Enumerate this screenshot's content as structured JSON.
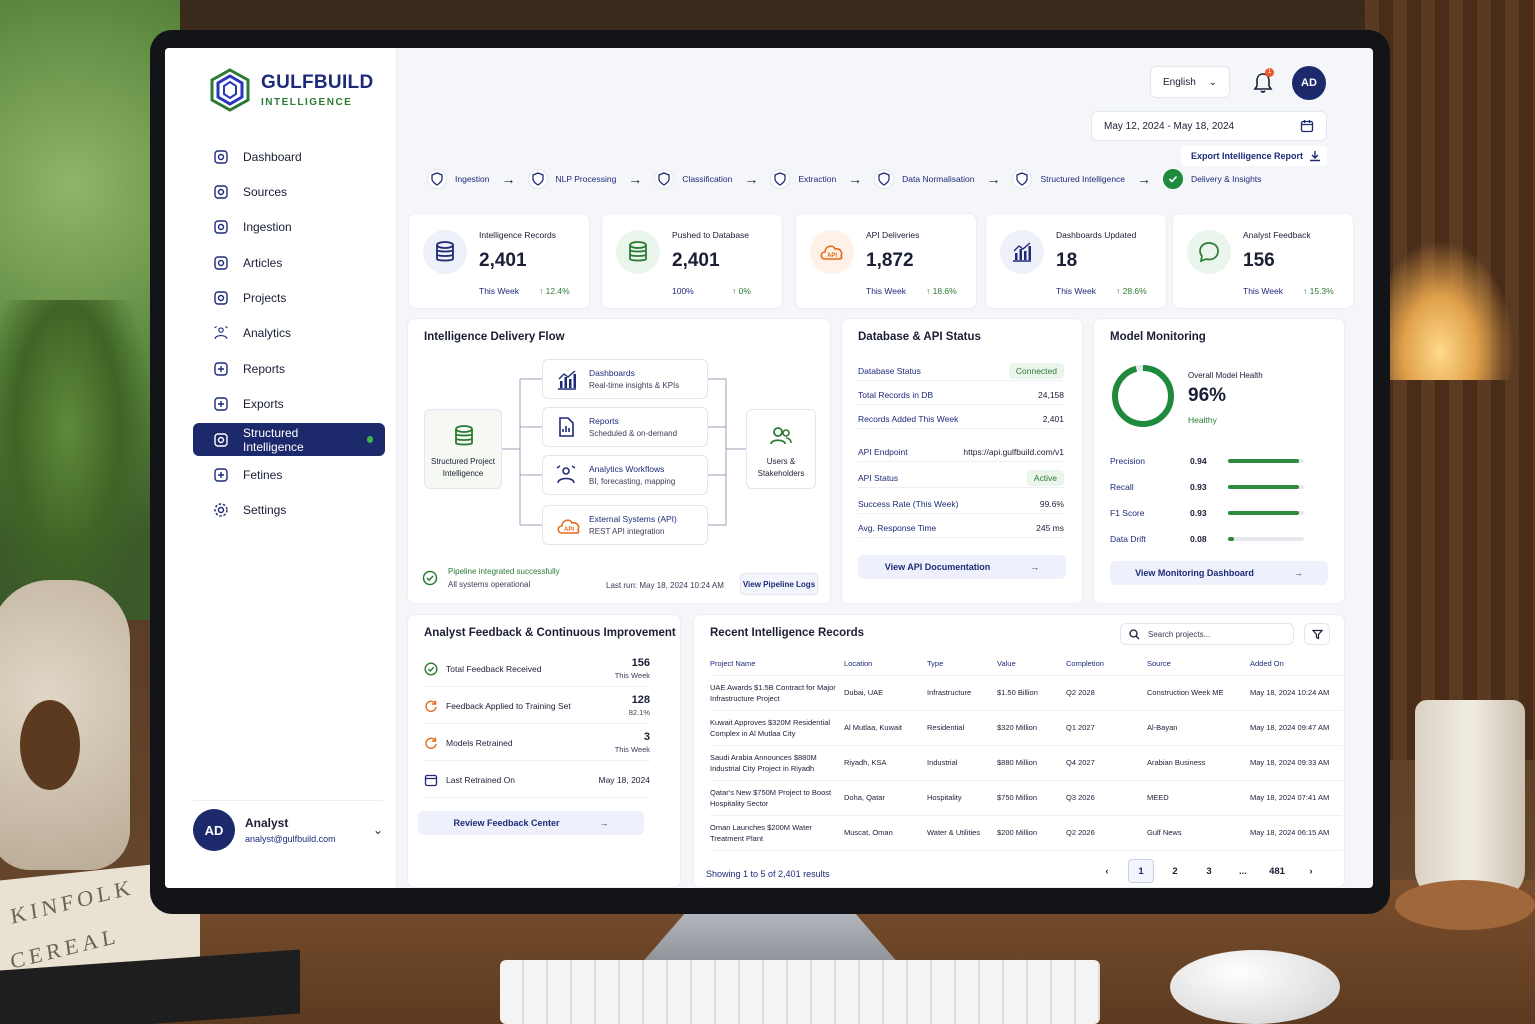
{
  "brand": {
    "name": "GULFBUILD",
    "sub": "INTELLIGENCE"
  },
  "sidebar": {
    "items": [
      {
        "label": "Dashboard",
        "icon": "dashboard-icon"
      },
      {
        "label": "Sources",
        "icon": "sources-icon"
      },
      {
        "label": "Ingestion",
        "icon": "ingestion-icon"
      },
      {
        "label": "Articles",
        "icon": "articles-icon"
      },
      {
        "label": "Projects",
        "icon": "projects-icon"
      },
      {
        "label": "Analytics",
        "icon": "analytics-icon"
      },
      {
        "label": "Reports",
        "icon": "reports-icon"
      },
      {
        "label": "Exports",
        "icon": "exports-icon"
      },
      {
        "label": "Structured Intelligence",
        "icon": "structured-intelligence-icon",
        "active": true
      },
      {
        "label": "Fetines",
        "icon": "fetines-icon"
      },
      {
        "label": "Settings",
        "icon": "settings-icon"
      }
    ],
    "user": {
      "initials": "AD",
      "name": "Analyst",
      "email": "analyst@gulfbuild.com"
    }
  },
  "header": {
    "language": "English",
    "notification_count": "1",
    "avatar_initials": "AD",
    "date_range": "May 12, 2024 - May 18, 2024",
    "export_label": "Export Intelligence Report"
  },
  "pipeline": [
    {
      "label": "Ingestion",
      "done": false
    },
    {
      "label": "NLP Processing",
      "done": false
    },
    {
      "label": "Classification",
      "done": false
    },
    {
      "label": "Extraction",
      "done": false
    },
    {
      "label": "Data Normalisation",
      "done": false
    },
    {
      "label": "Structured Intelligence",
      "done": false
    },
    {
      "label": "Delivery & Insights",
      "done": true
    }
  ],
  "kpis": [
    {
      "label": "Intelligence Records",
      "value": "2,401",
      "period": "This Week",
      "trend": "↑ 12.4%",
      "icon": "database-icon",
      "tone": "blue"
    },
    {
      "label": "Pushed to Database",
      "value": "2,401",
      "period": "100%",
      "trend": "↑ 0%",
      "icon": "database-icon",
      "tone": "green"
    },
    {
      "label": "API Deliveries",
      "value": "1,872",
      "period": "This Week",
      "trend": "↑ 18.6%",
      "icon": "api-cloud-icon",
      "tone": "orange"
    },
    {
      "label": "Dashboards Updated",
      "value": "18",
      "period": "This Week",
      "trend": "↑ 28.6%",
      "icon": "bar-chart-icon",
      "tone": "blue"
    },
    {
      "label": "Analyst Feedback",
      "value": "156",
      "period": "This Week",
      "trend": "↑ 15.3%",
      "icon": "chat-icon",
      "tone": "green"
    }
  ],
  "flow": {
    "title": "Intelligence Delivery Flow",
    "source_label": "Structured Project Intelligence",
    "target_label": "Users & Stakeholders",
    "items": [
      {
        "title": "Dashboards",
        "sub": "Real-time insights & KPIs",
        "icon": "bar-chart-icon"
      },
      {
        "title": "Reports",
        "sub": "Scheduled & on-demand",
        "icon": "report-icon"
      },
      {
        "title": "Analytics Workflows",
        "sub": "BI, forecasting, mapping",
        "icon": "analytics-icon"
      },
      {
        "title": "External Systems (API)",
        "sub": "REST API integration",
        "icon": "api-cloud-icon"
      }
    ],
    "status_title": "Pipeline integrated successfully",
    "status_sub": "All systems operational",
    "last_run": "Last run: May 18, 2024 10:24 AM",
    "logs_label": "View Pipeline Logs"
  },
  "db_status": {
    "title": "Database & API Status",
    "rows": [
      {
        "k": "Database Status",
        "v": "Connected",
        "pill": true
      },
      {
        "k": "Total Records in DB",
        "v": "24,158"
      },
      {
        "k": "Records Added This Week",
        "v": "2,401"
      },
      {
        "k": "API Endpoint",
        "v": "https://api.gulfbuild.com/v1"
      },
      {
        "k": "API Status",
        "v": "Active",
        "pill": true
      },
      {
        "k": "Success Rate (This Week)",
        "v": "99.6%"
      },
      {
        "k": "Avg. Response Time",
        "v": "245 ms"
      }
    ],
    "button": "View API Documentation"
  },
  "model": {
    "title": "Model Monitoring",
    "health_label": "Overall Model Health",
    "health_value": "96%",
    "health_fraction": 0.96,
    "health_status": "Healthy",
    "metrics": [
      {
        "k": "Precision",
        "v": "0.94",
        "fraction": 0.94
      },
      {
        "k": "Recall",
        "v": "0.93",
        "fraction": 0.93
      },
      {
        "k": "F1 Score",
        "v": "0.93",
        "fraction": 0.93
      },
      {
        "k": "Data Drift",
        "v": "0.08",
        "fraction": 0.08
      }
    ],
    "button": "View Monitoring Dashboard"
  },
  "feedback": {
    "title": "Analyst Feedback & Continuous Improvement",
    "rows": [
      {
        "label": "Total Feedback Received",
        "value": "156",
        "sub": "This Week",
        "icon": "check-circle-icon"
      },
      {
        "label": "Feedback Applied to Training Set",
        "value": "128",
        "sub": "82.1%",
        "icon": "refresh-icon"
      },
      {
        "label": "Models Retrained",
        "value": "3",
        "sub": "This Week",
        "icon": "refresh-icon"
      },
      {
        "label": "Last Retrained On",
        "date": "May 18, 2024",
        "icon": "calendar-icon"
      }
    ],
    "button": "Review Feedback Center"
  },
  "records": {
    "title": "Recent Intelligence Records",
    "search_placeholder": "Search projects...",
    "columns": [
      "Project Name",
      "Location",
      "Type",
      "Value",
      "Completion",
      "Source",
      "Added On"
    ],
    "rows": [
      [
        "UAE Awards $1.5B Contract for Major Infrastructure Project",
        "Dubai, UAE",
        "Infrastructure",
        "$1.50 Billion",
        "Q2 2028",
        "Construction Week ME",
        "May 18, 2024 10:24 AM"
      ],
      [
        "Kuwait Approves $320M Residential Complex in Al Mutlaa City",
        "Al Mutlaa, Kuwait",
        "Residential",
        "$320 Million",
        "Q1 2027",
        "Al-Bayan",
        "May 18, 2024 09:47 AM"
      ],
      [
        "Saudi Arabia Announces $880M Industrial City Project in Riyadh",
        "Riyadh, KSA",
        "Industrial",
        "$880 Million",
        "Q4 2027",
        "Arabian Business",
        "May 18, 2024 09:33 AM"
      ],
      [
        "Qatar's New $750M Project to Boost Hospitality Sector",
        "Doha, Qatar",
        "Hospitality",
        "$750 Million",
        "Q3 2026",
        "MEED",
        "May 18, 2024 07:41 AM"
      ],
      [
        "Oman Launches $200M Water Treatment Plant",
        "Muscat, Oman",
        "Water & Utilities",
        "$200 Million",
        "Q2 2026",
        "Gulf News",
        "May 18, 2024 06:15 AM"
      ]
    ],
    "showing": "Showing 1 to 5 of 2,401 results",
    "pages": [
      "1",
      "2",
      "3",
      "...",
      "481"
    ]
  },
  "colors": {
    "primary": "#1c2a6b",
    "accent": "#1e2a78",
    "success": "#2d7a34",
    "warning": "#e36b1a"
  }
}
